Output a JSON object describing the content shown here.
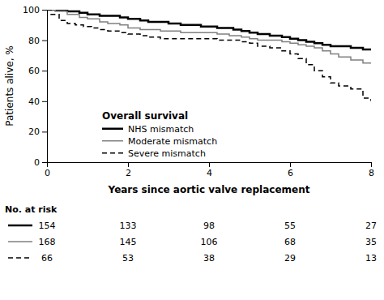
{
  "chart_data": {
    "type": "line",
    "x_label": "Years since aortic valve replacement",
    "y_label": "Patients alive, %",
    "xlim": [
      0,
      8
    ],
    "ylim": [
      0,
      100
    ],
    "xticks": [
      0,
      2,
      4,
      6,
      8
    ],
    "yticks": [
      0,
      20,
      40,
      60,
      80,
      100
    ],
    "legend": "lower left",
    "legend_title": "Overall survival",
    "series": [
      {
        "name": "NHS mismatch",
        "color": "#000000",
        "line_style": "solid",
        "x": [
          0,
          0.2,
          0.5,
          0.8,
          1.0,
          1.3,
          1.5,
          1.8,
          2.0,
          2.3,
          2.5,
          2.8,
          3.0,
          3.3,
          3.6,
          3.8,
          4.0,
          4.2,
          4.4,
          4.6,
          4.8,
          5.0,
          5.2,
          5.5,
          5.8,
          6.0,
          6.2,
          6.4,
          6.6,
          6.8,
          7.0,
          7.2,
          7.5,
          7.8,
          8.0
        ],
        "values": [
          100,
          100,
          99,
          98,
          97,
          96,
          96,
          95,
          94,
          93,
          92,
          92,
          91,
          90,
          90,
          89,
          89,
          88,
          88,
          87,
          86,
          85,
          84,
          83,
          82,
          81,
          80,
          79,
          78,
          77,
          76,
          76,
          75,
          74,
          74
        ]
      },
      {
        "name": "Moderate mismatch",
        "color": "#808080",
        "line_style": "solid",
        "x": [
          0,
          0.2,
          0.5,
          0.8,
          1.0,
          1.3,
          1.5,
          1.8,
          2.0,
          2.3,
          2.5,
          2.8,
          3.0,
          3.3,
          3.6,
          3.8,
          4.0,
          4.2,
          4.5,
          4.8,
          5.0,
          5.2,
          5.5,
          5.8,
          6.0,
          6.2,
          6.4,
          6.6,
          6.8,
          7.0,
          7.2,
          7.5,
          7.8,
          8.0
        ],
        "values": [
          100,
          99,
          97,
          95,
          94,
          92,
          91,
          90,
          88,
          87,
          87,
          86,
          86,
          85,
          85,
          85,
          85,
          84,
          83,
          82,
          81,
          80,
          80,
          79,
          78,
          77,
          76,
          75,
          73,
          71,
          69,
          67,
          65,
          65
        ]
      },
      {
        "name": "Severe mismatch",
        "color": "#000000",
        "line_style": "dashed",
        "x": [
          0,
          0.1,
          0.3,
          0.5,
          0.7,
          0.9,
          1.1,
          1.3,
          1.5,
          1.8,
          2.0,
          2.3,
          2.5,
          2.8,
          3.0,
          3.3,
          3.5,
          3.8,
          4.0,
          4.2,
          4.5,
          4.8,
          5.0,
          5.2,
          5.5,
          5.8,
          6.0,
          6.2,
          6.4,
          6.6,
          6.8,
          7.0,
          7.2,
          7.5,
          7.8,
          8.0
        ],
        "values": [
          100,
          97,
          93,
          91,
          90,
          89,
          88,
          87,
          86,
          85,
          84,
          83,
          82,
          81,
          81,
          81,
          81,
          81,
          81,
          80,
          80,
          79,
          78,
          76,
          75,
          73,
          71,
          68,
          64,
          60,
          56,
          52,
          50,
          48,
          42,
          40
        ]
      }
    ],
    "at_risk": {
      "title": "No. at risk",
      "x": [
        0,
        2,
        4,
        6,
        8
      ],
      "rows": [
        {
          "color": "#000000",
          "line_style": "solid",
          "values": [
            154,
            133,
            98,
            55,
            27
          ]
        },
        {
          "color": "#808080",
          "line_style": "solid",
          "values": [
            168,
            145,
            106,
            68,
            35
          ]
        },
        {
          "color": "#000000",
          "line_style": "dashed",
          "values": [
            66,
            53,
            38,
            29,
            13
          ]
        }
      ]
    }
  }
}
